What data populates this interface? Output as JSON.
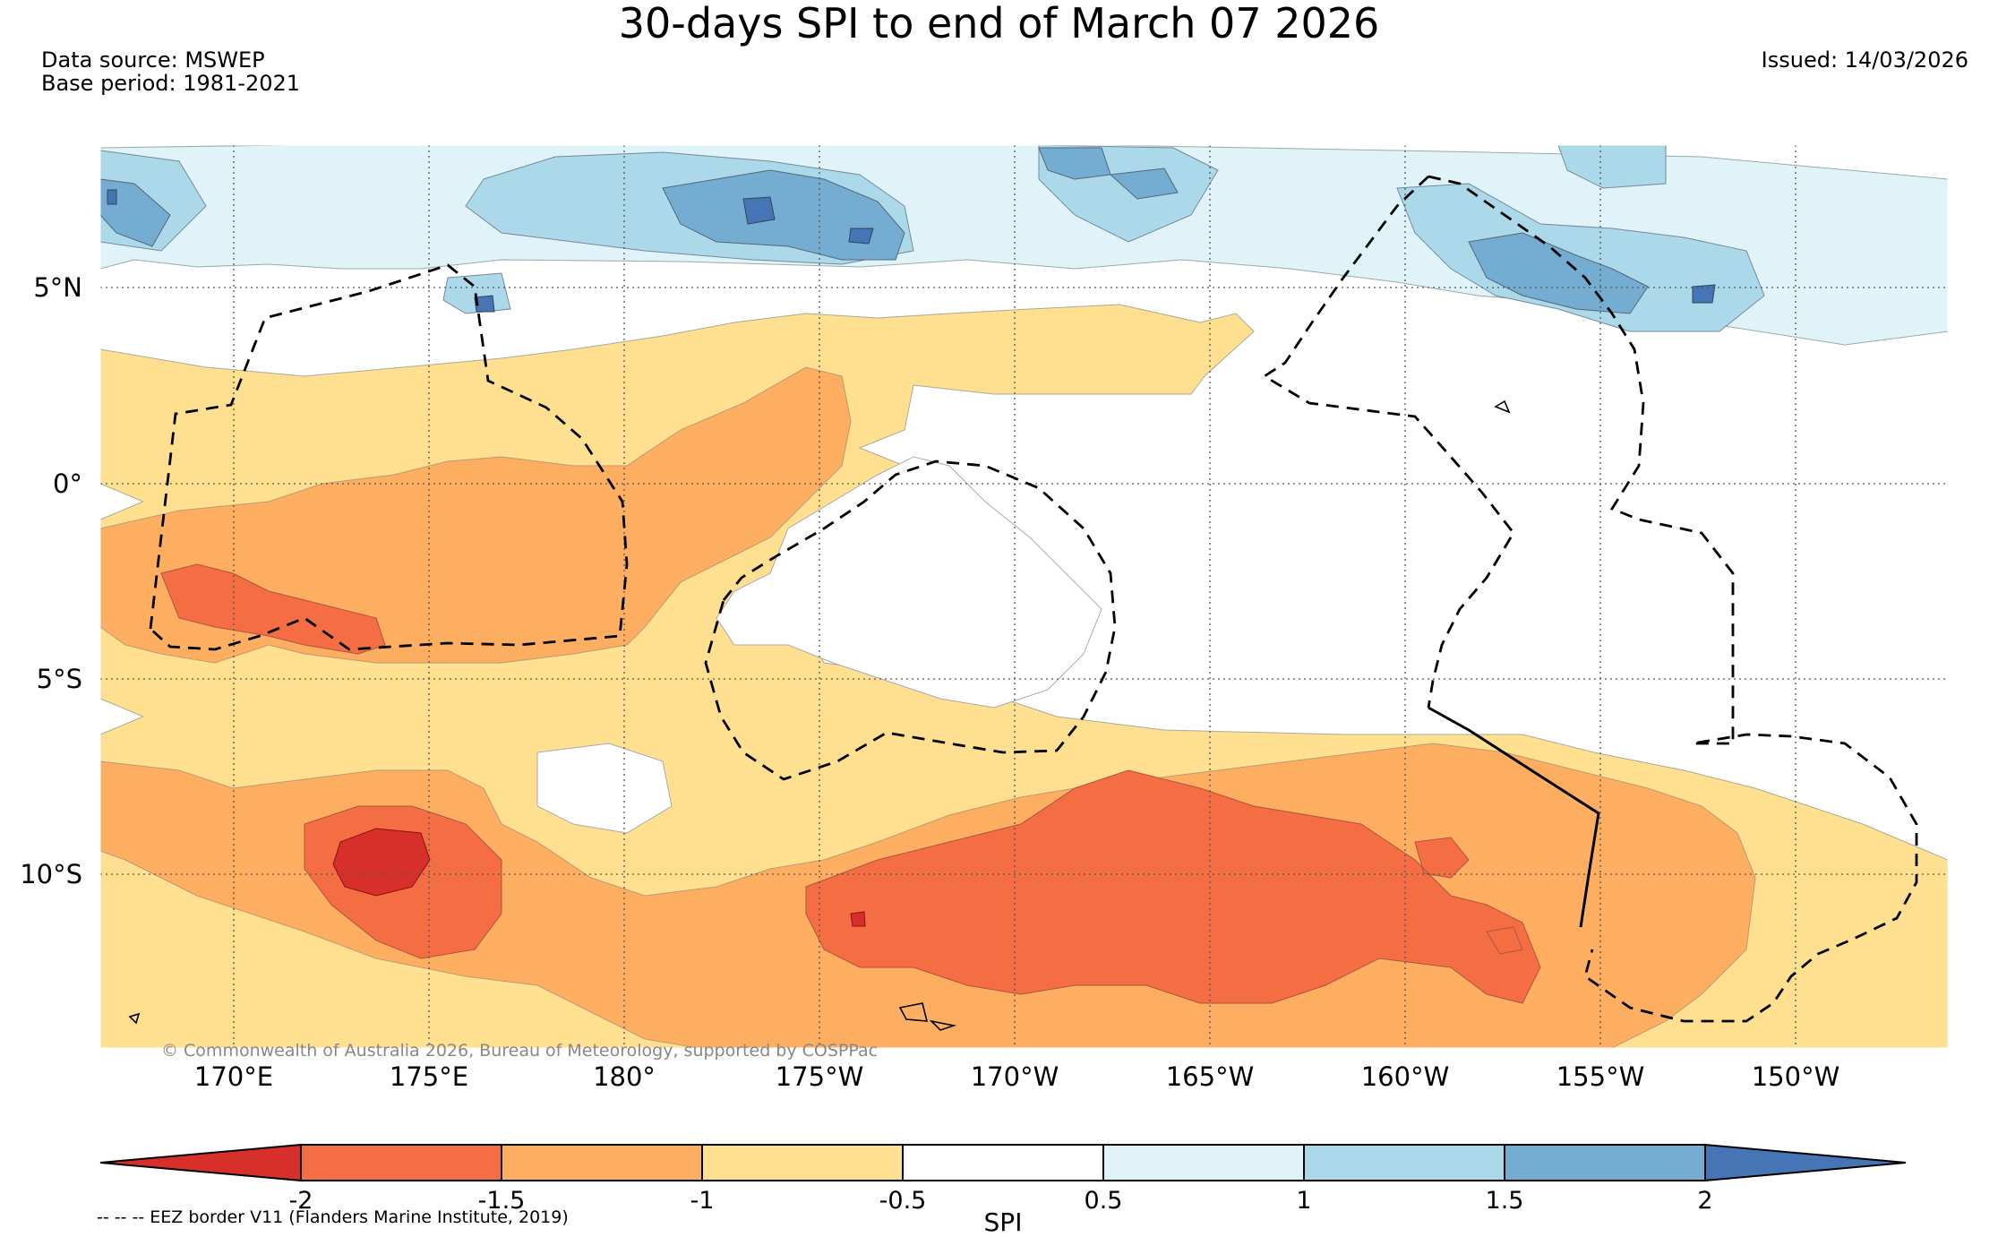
{
  "header": {
    "title": "30-days SPI to end of March 07 2026",
    "data_source": "Data source: MSWEP",
    "base_period": "Base period: 1981-2021",
    "issued": "Issued: 14/03/2026"
  },
  "map": {
    "lat_labels": [
      "5°N",
      "0°",
      "5°S",
      "10°S"
    ],
    "lon_labels": [
      "170°E",
      "175°E",
      "180°",
      "175°W",
      "170°W",
      "165°W",
      "160°W",
      "155°W",
      "150°W"
    ],
    "copyright": "© Commonwealth of Australia 2026, Bureau of Meteorology, supported by COSPPac"
  },
  "colorbar": {
    "title": "SPI",
    "ticks": [
      "-2",
      "-1.5",
      "-1",
      "-0.5",
      "0.5",
      "1",
      "1.5",
      "2"
    ],
    "colors": [
      "#d7302a",
      "#f46d43",
      "#fdae61",
      "#fee090",
      "#ffffff",
      "#e0f3f8",
      "#abd9e9",
      "#74add1",
      "#4575b4"
    ]
  },
  "legend": {
    "eez_note": "-- -- -- EEZ border V11 (Flanders Marine Institute, 2019)"
  }
}
